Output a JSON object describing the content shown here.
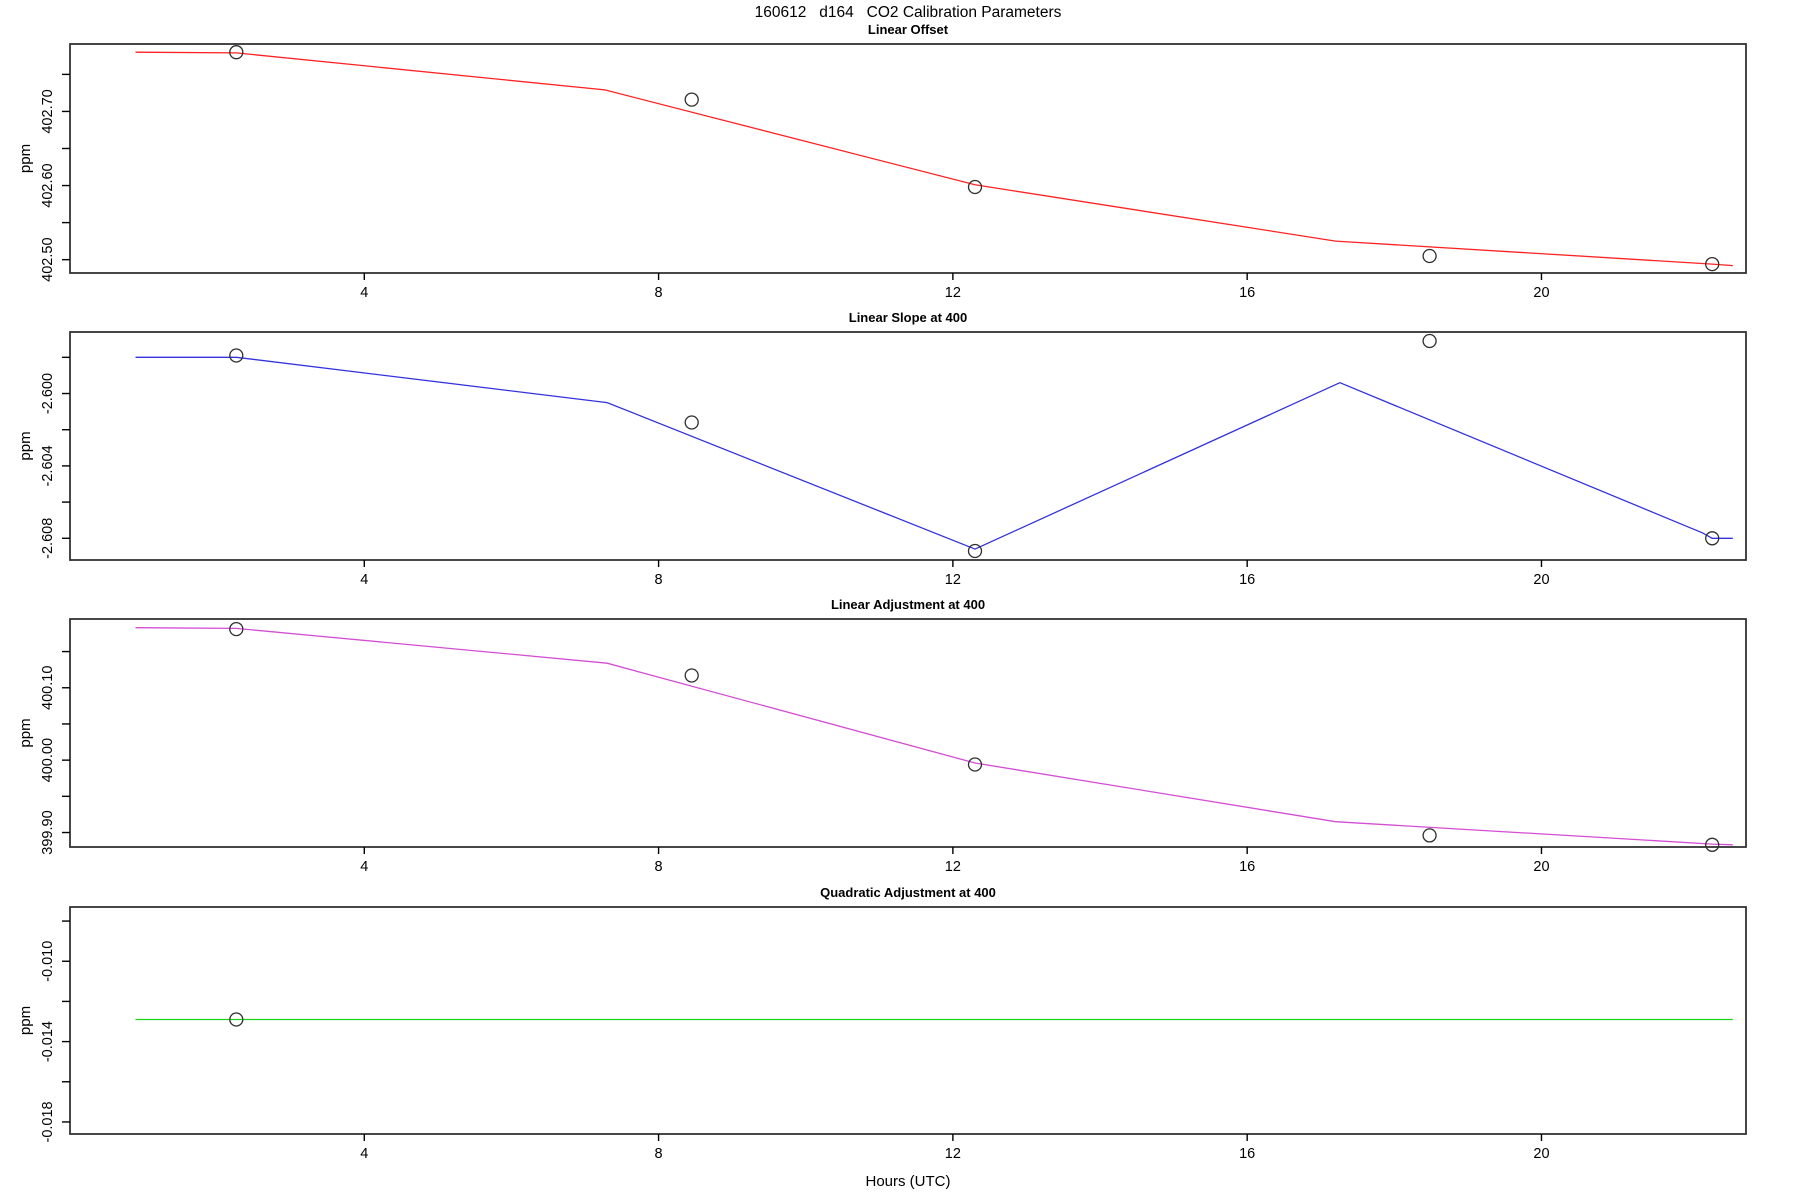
{
  "figure_title": "160612   d164   CO2 Calibration Parameters",
  "x_axis_label": "Hours (UTC)",
  "marker_style": {
    "shape": "open-circle",
    "stroke_color": "#2e2e2e"
  },
  "frame_color": "#333333",
  "x_ticks": [
    {
      "v": 4,
      "label": "4"
    },
    {
      "v": 8,
      "label": "8"
    },
    {
      "v": 12,
      "label": "12"
    },
    {
      "v": 16,
      "label": "16"
    },
    {
      "v": 20,
      "label": "20"
    }
  ],
  "chart_data": [
    {
      "type": "line",
      "title": "Linear Offset",
      "ylabel": "ppm",
      "color": "#ff2222",
      "grid": false,
      "legend": "none",
      "xlim": [
        0,
        22.78
      ],
      "ylim": [
        402.482,
        402.791
      ],
      "y_ticks": [
        {
          "v": 402.75,
          "label": ""
        },
        {
          "v": 402.7,
          "label": "402.70"
        },
        {
          "v": 402.65,
          "label": ""
        },
        {
          "v": 402.6,
          "label": "402.60"
        },
        {
          "v": 402.55,
          "label": ""
        },
        {
          "v": 402.5,
          "label": "402.50"
        }
      ],
      "points": {
        "hours": [
          2.26,
          8.45,
          12.3,
          18.48,
          22.32
        ],
        "ppm": [
          402.78,
          402.716,
          402.598,
          402.505,
          402.494
        ]
      },
      "line": {
        "hours": [
          0.89,
          2.26,
          7.27,
          12.3,
          17.2,
          22.32,
          22.6
        ],
        "ppm": [
          402.78,
          402.779,
          402.729,
          402.601,
          402.525,
          402.494,
          402.492
        ]
      }
    },
    {
      "type": "line",
      "title": "Linear Slope at 400",
      "ylabel": "ppm",
      "color": "#3333dd",
      "grid": false,
      "legend": "none",
      "xlim": [
        0,
        22.78
      ],
      "ylim": [
        -2.6092,
        -2.5966
      ],
      "y_ticks": [
        {
          "v": -2.598,
          "label": ""
        },
        {
          "v": -2.6,
          "label": "-2.600"
        },
        {
          "v": -2.602,
          "label": ""
        },
        {
          "v": -2.604,
          "label": "-2.604"
        },
        {
          "v": -2.606,
          "label": ""
        },
        {
          "v": -2.608,
          "label": "-2.608"
        }
      ],
      "points": {
        "hours": [
          2.26,
          8.45,
          12.3,
          18.48,
          22.32
        ],
        "ppm": [
          -2.5979,
          -2.6016,
          -2.6087,
          -2.5971,
          -2.608
        ]
      },
      "line": {
        "hours": [
          0.89,
          2.26,
          7.3,
          12.3,
          17.26,
          22.19,
          22.32,
          22.6
        ],
        "ppm": [
          -2.598,
          -2.598,
          -2.6005,
          -2.6086,
          -2.5994,
          -2.6077,
          -2.608,
          -2.608
        ]
      }
    },
    {
      "type": "line",
      "title": "Linear Adjustment at 400",
      "ylabel": "ppm",
      "color": "#d44dd4",
      "grid": false,
      "legend": "none",
      "xlim": [
        0,
        22.78
      ],
      "ylim": [
        399.88,
        400.195
      ],
      "y_ticks": [
        {
          "v": 400.15,
          "label": ""
        },
        {
          "v": 400.1,
          "label": "400.10"
        },
        {
          "v": 400.05,
          "label": ""
        },
        {
          "v": 400.0,
          "label": "400.00"
        },
        {
          "v": 399.95,
          "label": ""
        },
        {
          "v": 399.9,
          "label": "399.90"
        }
      ],
      "points": {
        "hours": [
          2.26,
          8.45,
          12.3,
          18.48,
          22.32
        ],
        "ppm": [
          400.181,
          400.117,
          399.994,
          399.896,
          399.883
        ]
      },
      "line": {
        "hours": [
          0.89,
          2.26,
          7.3,
          12.3,
          17.2,
          22.32,
          22.6
        ],
        "ppm": [
          400.183,
          400.182,
          400.134,
          399.996,
          399.915,
          399.884,
          399.883
        ]
      }
    },
    {
      "type": "line",
      "title": "Quadratic Adjustment at 400",
      "ylabel": "ppm",
      "color": "#1ed31e",
      "grid": false,
      "legend": "none",
      "xlim": [
        0,
        22.78
      ],
      "ylim": [
        -0.0186,
        -0.0073
      ],
      "y_ticks": [
        {
          "v": -0.008,
          "label": ""
        },
        {
          "v": -0.01,
          "label": "-0.010"
        },
        {
          "v": -0.012,
          "label": ""
        },
        {
          "v": -0.014,
          "label": "-0.014"
        },
        {
          "v": -0.016,
          "label": ""
        },
        {
          "v": -0.018,
          "label": "-0.018"
        }
      ],
      "points": {
        "hours": [
          2.26
        ],
        "ppm": [
          -0.0129
        ]
      },
      "line": {
        "hours": [
          0.89,
          22.6
        ],
        "ppm": [
          -0.0129,
          -0.0129
        ]
      }
    }
  ]
}
